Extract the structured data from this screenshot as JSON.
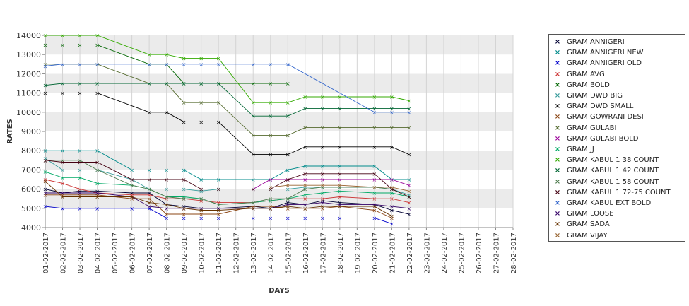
{
  "chart_data": {
    "type": "line",
    "title": "",
    "xlabel": "DAYS",
    "ylabel": "RATES",
    "ylim": [
      4000,
      14000
    ],
    "yticks": [
      "4000",
      "5000",
      "6000",
      "7000",
      "8000",
      "9000",
      "10000",
      "11000",
      "12000",
      "13000",
      "14000"
    ],
    "grid": "horizontal alternating bands",
    "legend_position": "right",
    "categories": [
      "01-02-2017",
      "02-02-2017",
      "03-02-2017",
      "04-02-2017",
      "05-02-2017",
      "06-02-2017",
      "07-02-2017",
      "08-02-2017",
      "09-02-2017",
      "10-02-2017",
      "11-02-2017",
      "12-02-2017",
      "13-02-2017",
      "14-02-2017",
      "15-02-2017",
      "16-02-2017",
      "17-02-2017",
      "18-02-2017",
      "19-02-2017",
      "20-02-2017",
      "21-02-2017",
      "22-02-2017",
      "23-02-2017",
      "24-02-2017",
      "25-02-2017",
      "26-02-2017",
      "27-02-2017",
      "28-02-2017"
    ],
    "series": [
      {
        "name": "GRAM ANNIGERI",
        "color": "#000033",
        "values": [
          6000,
          5800,
          5900,
          5900,
          null,
          5800,
          5800,
          5200,
          5100,
          5000,
          5000,
          null,
          5100,
          5000,
          5300,
          5200,
          5400,
          5300,
          null,
          5200,
          4900,
          4700,
          null,
          null,
          null,
          null,
          null,
          null
        ]
      },
      {
        "name": "GRAM ANNIGERI NEW",
        "color": "#008B8B",
        "values": [
          8000,
          8000,
          8000,
          8000,
          null,
          7000,
          7000,
          7000,
          7000,
          6500,
          6500,
          null,
          6500,
          6500,
          7000,
          7200,
          7200,
          7200,
          null,
          7200,
          6500,
          6500,
          null,
          null,
          null,
          null,
          null,
          null
        ]
      },
      {
        "name": "GRAM ANNIGERI OLD",
        "color": "#0000CC",
        "values": [
          5100,
          5000,
          5000,
          5000,
          null,
          5000,
          5000,
          4500,
          4500,
          4500,
          4500,
          null,
          4500,
          4500,
          4500,
          4500,
          4500,
          4500,
          null,
          4500,
          4200,
          null,
          null,
          null,
          null,
          null,
          null,
          null
        ]
      },
      {
        "name": "GRAM AVG",
        "color": "#CC3333",
        "values": [
          6500,
          6300,
          6000,
          5800,
          null,
          5700,
          5700,
          5500,
          5500,
          5400,
          5300,
          null,
          5300,
          5400,
          5500,
          5500,
          5500,
          5600,
          null,
          5500,
          5500,
          5300,
          null,
          null,
          null,
          null,
          null,
          null
        ]
      },
      {
        "name": "GRAM BOLD",
        "color": "#006600",
        "values": [
          13500,
          13500,
          13500,
          13500,
          null,
          null,
          12500,
          12500,
          11500,
          11500,
          11500,
          null,
          11500,
          11500,
          11500,
          null,
          null,
          null,
          null,
          null,
          null,
          null,
          null,
          null,
          null,
          null,
          null,
          null
        ]
      },
      {
        "name": "GRAM DWD BIG",
        "color": "#339999",
        "values": [
          7600,
          7000,
          7000,
          7000,
          null,
          6500,
          6000,
          6000,
          6000,
          5900,
          6000,
          null,
          6000,
          6000,
          6000,
          6100,
          6100,
          6100,
          null,
          6100,
          6000,
          5700,
          null,
          null,
          null,
          null,
          null,
          null
        ]
      },
      {
        "name": "GRAM DWD SMALL",
        "color": "#000000",
        "values": [
          11000,
          11000,
          11000,
          11000,
          null,
          null,
          10000,
          10000,
          9500,
          9500,
          9500,
          null,
          7800,
          7800,
          7800,
          8200,
          8200,
          8200,
          null,
          8200,
          8200,
          7800,
          null,
          null,
          null,
          null,
          null,
          null
        ]
      },
      {
        "name": "GRAM GOWRANI DESI",
        "color": "#8B4513",
        "values": [
          5700,
          5700,
          5700,
          5700,
          null,
          5500,
          5500,
          4700,
          4700,
          4700,
          4700,
          null,
          5100,
          5100,
          5000,
          5000,
          5000,
          5100,
          null,
          4900,
          4500,
          null,
          null,
          null,
          null,
          null,
          null,
          null
        ]
      },
      {
        "name": "GRAM GULABI",
        "color": "#556B2F",
        "values": [
          12500,
          null,
          null,
          12500,
          null,
          null,
          11500,
          11500,
          10500,
          10500,
          10500,
          null,
          8800,
          8800,
          8800,
          9200,
          9200,
          9200,
          null,
          9200,
          9200,
          9200,
          null,
          null,
          null,
          null,
          null,
          null
        ]
      },
      {
        "name": "GRAM GULABI BOLD",
        "color": "#990099",
        "values": [
          null,
          null,
          null,
          null,
          null,
          null,
          null,
          null,
          null,
          null,
          null,
          null,
          6000,
          6500,
          6500,
          6500,
          6500,
          6500,
          null,
          6500,
          6500,
          6200,
          null,
          null,
          null,
          null,
          null,
          null
        ]
      },
      {
        "name": "GRAM JJ",
        "color": "#00AA66",
        "values": [
          6900,
          6600,
          6600,
          6300,
          null,
          6200,
          6000,
          5600,
          5600,
          5500,
          5200,
          null,
          5300,
          5400,
          5500,
          5700,
          5800,
          5900,
          null,
          5800,
          5800,
          5600,
          null,
          null,
          null,
          null,
          null,
          null
        ]
      },
      {
        "name": "GRAM KABUL 1 38 COUNT",
        "color": "#33AA00",
        "values": [
          14000,
          14000,
          14000,
          14000,
          null,
          null,
          13000,
          13000,
          12800,
          12800,
          12800,
          null,
          10500,
          10500,
          10500,
          10800,
          10800,
          10800,
          null,
          10800,
          10800,
          10600,
          null,
          null,
          null,
          null,
          null,
          null
        ]
      },
      {
        "name": "GRAM KABUL 1 42 COUNT",
        "color": "#006633",
        "values": [
          11400,
          11500,
          11500,
          11500,
          null,
          null,
          11500,
          11500,
          11500,
          11500,
          11500,
          null,
          9800,
          9800,
          9800,
          10200,
          10200,
          10200,
          null,
          10200,
          10200,
          10200,
          null,
          null,
          null,
          null,
          null,
          null
        ]
      },
      {
        "name": "GRAM KABUL 1 58 COUNT",
        "color": "#4D7A4D",
        "values": [
          7500,
          7500,
          7500,
          7000,
          null,
          6200,
          6000,
          5600,
          5500,
          5500,
          5200,
          null,
          5300,
          5500,
          5500,
          6000,
          6100,
          6100,
          null,
          6100,
          6000,
          5600,
          null,
          null,
          null,
          null,
          null,
          null
        ]
      },
      {
        "name": "GRAM KABUL 1 72-75 COUNT",
        "color": "#440011",
        "values": [
          7500,
          7400,
          7400,
          7400,
          null,
          6500,
          6500,
          6500,
          6500,
          6000,
          6000,
          null,
          6000,
          6000,
          6500,
          6800,
          6800,
          6800,
          null,
          6800,
          6000,
          5600,
          null,
          null,
          null,
          null,
          null,
          null
        ]
      },
      {
        "name": "GRAM KABUL EXT BOLD",
        "color": "#3366CC",
        "values": [
          12400,
          12500,
          12500,
          12500,
          null,
          null,
          12500,
          12500,
          12500,
          12500,
          12500,
          null,
          12500,
          12500,
          12500,
          null,
          null,
          null,
          null,
          10000,
          10000,
          10000,
          null,
          null,
          null,
          null,
          null,
          null
        ]
      },
      {
        "name": "GRAM LOOSE",
        "color": "#330066",
        "values": [
          5800,
          5800,
          5800,
          5800,
          null,
          5600,
          5100,
          5000,
          5000,
          5000,
          5000,
          null,
          5000,
          5000,
          5200,
          5200,
          5300,
          5200,
          null,
          5200,
          5100,
          5000,
          null,
          null,
          null,
          null,
          null,
          null
        ]
      },
      {
        "name": "GRAM SADA",
        "color": "#663300",
        "values": [
          6400,
          5600,
          5600,
          5600,
          null,
          5600,
          5300,
          5200,
          5000,
          4900,
          4900,
          null,
          5000,
          5000,
          5100,
          5000,
          5100,
          5100,
          null,
          5100,
          4600,
          null,
          null,
          null,
          null,
          null,
          null,
          null
        ]
      },
      {
        "name": "GRAM VIJAY",
        "color": "#996633",
        "values": [
          null,
          null,
          null,
          null,
          null,
          null,
          null,
          null,
          null,
          null,
          null,
          null,
          null,
          6100,
          6200,
          6200,
          6200,
          6200,
          null,
          6100,
          6100,
          5900,
          null,
          null,
          null,
          null,
          null,
          null
        ]
      }
    ]
  }
}
